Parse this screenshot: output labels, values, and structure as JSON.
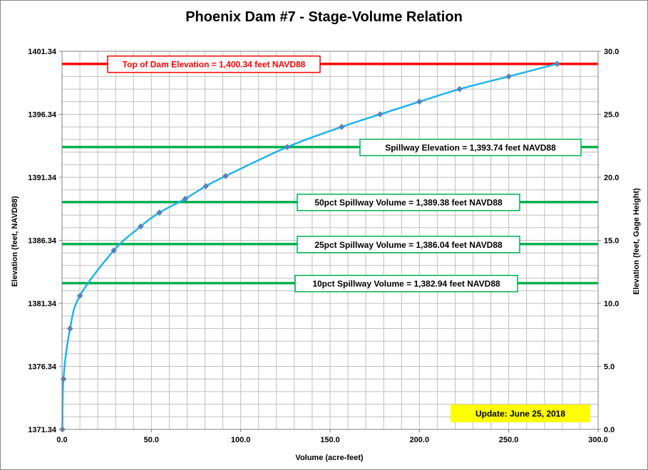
{
  "chart_data": {
    "type": "scatter",
    "title": "Phoenix Dam #7 - Stage-Volume Relation",
    "xlabel": "Volume (acre-feet)",
    "ylabel_left": "Elevation  (feet, NAVD88)",
    "ylabel_right": "Elevation  (feet, Gage  Height)",
    "xlim": [
      0,
      300
    ],
    "ylim_left": [
      1371.34,
      1401.34
    ],
    "ylim_right": [
      0,
      30
    ],
    "x_ticks": [
      "0.0",
      "50.0",
      "100.0",
      "150.0",
      "200.0",
      "250.0",
      "300.0"
    ],
    "y_left_ticks": [
      "1371.34",
      "1376.34",
      "1381.34",
      "1386.34",
      "1391.34",
      "1396.34",
      "1401.34"
    ],
    "y_right_ticks": [
      "0.0",
      "5.0",
      "10.0",
      "15.0",
      "20.0",
      "25.0",
      "30.0"
    ],
    "grid": true,
    "series": [
      {
        "color": "#1fb4e8",
        "marker_color": "#5b7fb8",
        "x": [
          0.2,
          0.8,
          4.5,
          10.0,
          29.0,
          44.0,
          54.5,
          69.0,
          80.5,
          91.5,
          126.0,
          156.5,
          178.0,
          200.0,
          222.5,
          250.0,
          277.0
        ],
        "y": [
          1371.34,
          1375.34,
          1379.34,
          1381.94,
          1385.54,
          1387.44,
          1388.54,
          1389.64,
          1390.64,
          1391.44,
          1393.74,
          1395.34,
          1396.34,
          1397.34,
          1398.34,
          1399.34,
          1400.34
        ]
      }
    ],
    "reference_lines": [
      {
        "y": 1400.34,
        "color": "#ff0000",
        "label": "Top of Dam Elevation = 1,400.34  feet NAVD88"
      },
      {
        "y": 1393.74,
        "color": "#00b050",
        "label": "Spillway Elevation = 1,393.74  feet NAVD88"
      },
      {
        "y": 1389.38,
        "color": "#00b050",
        "label": "50pct Spillway Volume = 1,389.38  feet NAVD88"
      },
      {
        "y": 1386.04,
        "color": "#00b050",
        "label": "25pct Spillway Volume = 1,386.04  feet NAVD88"
      },
      {
        "y": 1382.94,
        "color": "#00b050",
        "label": "10pct Spillway Volume = 1,382.94  feet NAVD88"
      }
    ],
    "update_label": "Update: June 25, 2018",
    "update_color": "#ffff00"
  }
}
